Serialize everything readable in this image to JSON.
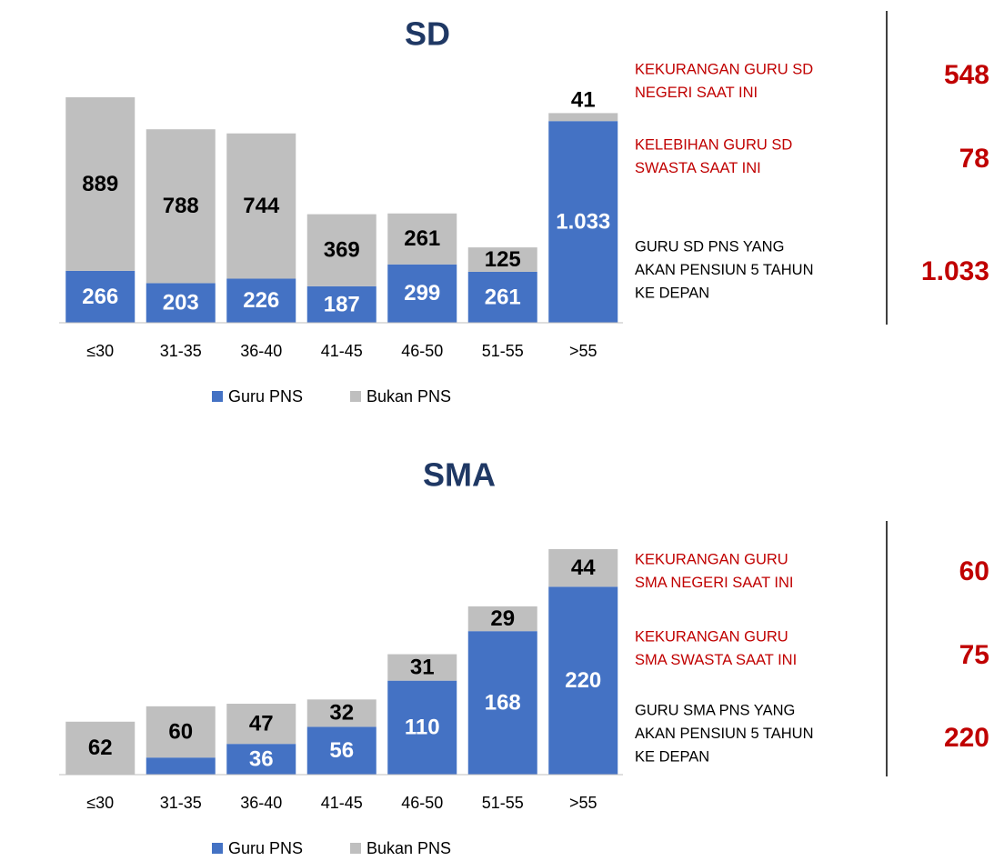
{
  "chart_data": [
    {
      "type": "bar",
      "stacked": true,
      "title": "SD",
      "categories": [
        "≤30",
        "31-35",
        "36-40",
        "41-45",
        "46-50",
        "51-55",
        ">55"
      ],
      "series": [
        {
          "name": "Guru PNS",
          "color": "#4472c4",
          "label_color": "#ffffff",
          "values": [
            266,
            203,
            226,
            187,
            299,
            261,
            1033
          ],
          "value_labels": [
            "266",
            "203",
            "226",
            "187",
            "299",
            "261",
            "1.033"
          ]
        },
        {
          "name": "Bukan PNS",
          "color": "#bfbfbf",
          "label_color": "#000000",
          "values": [
            889,
            788,
            744,
            369,
            261,
            125,
            41
          ]
        }
      ],
      "annotations": [
        {
          "lines": [
            "KEKURANGAN GURU SD",
            "NEGERI SAAT INI"
          ],
          "value": "548",
          "color": "#c00000"
        },
        {
          "lines": [
            "KELEBIHAN GURU SD",
            "SWASTA SAAT INI"
          ],
          "value": "78",
          "color": "#c00000"
        },
        {
          "lines": [
            "GURU SD PNS YANG",
            "AKAN PENSIUN 5 TAHUN",
            "KE DEPAN"
          ],
          "value": "1.033",
          "color": "#000000"
        }
      ]
    },
    {
      "type": "bar",
      "stacked": true,
      "title": "SMA",
      "categories": [
        "≤30",
        "31-35",
        "36-40",
        "41-45",
        "46-50",
        "51-55",
        ">55"
      ],
      "series": [
        {
          "name": "Guru PNS",
          "color": "#4472c4",
          "label_color": "#ffffff",
          "values": [
            null,
            20,
            36,
            56,
            110,
            168,
            220
          ]
        },
        {
          "name": "Bukan PNS",
          "color": "#bfbfbf",
          "label_color": "#000000",
          "values": [
            62,
            60,
            47,
            32,
            31,
            29,
            44
          ]
        }
      ],
      "annotations": [
        {
          "lines": [
            "KEKURANGAN GURU",
            "SMA NEGERI SAAT INI"
          ],
          "value": "60",
          "color": "#c00000"
        },
        {
          "lines": [
            "KEKURANGAN GURU",
            "SMA SWASTA SAAT INI"
          ],
          "value": "75",
          "color": "#c00000"
        },
        {
          "lines": [
            "GURU SMA PNS YANG",
            "AKAN PENSIUN 5 TAHUN",
            "KE DEPAN"
          ],
          "value": "220",
          "color": "#000000"
        }
      ]
    }
  ]
}
